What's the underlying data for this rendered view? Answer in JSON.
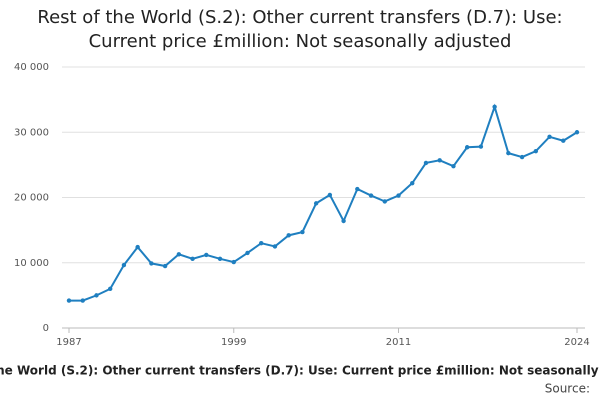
{
  "chart_data": {
    "type": "line",
    "title": "Rest of the World (S.2): Other current transfers (D.7): Use: Current price £million: Not seasonally adjusted",
    "source": "Source:",
    "x": [
      1987,
      1988,
      1989,
      1990,
      1991,
      1992,
      1993,
      1994,
      1995,
      1996,
      1997,
      1998,
      1999,
      2000,
      2001,
      2002,
      2003,
      2004,
      2005,
      2006,
      2007,
      2008,
      2009,
      2010,
      2011,
      2012,
      2013,
      2014,
      2015,
      2016,
      2017,
      2018,
      2019,
      2020,
      2021,
      2022,
      2023,
      2024
    ],
    "values": [
      4200,
      4200,
      5000,
      6000,
      9650,
      12400,
      9900,
      9500,
      11300,
      10600,
      11200,
      10600,
      10100,
      11500,
      13000,
      12500,
      14200,
      14700,
      19100,
      20400,
      16400,
      21300,
      20300,
      19400,
      20300,
      22200,
      25300,
      25700,
      24800,
      27700,
      27800,
      33900,
      26800,
      26200,
      27100,
      29300,
      28700,
      30000
    ],
    "color": "#1f7fc0",
    "xlim": [
      1987,
      2024
    ],
    "xticks": [
      1987,
      1999,
      2011,
      2024
    ],
    "ylim": [
      0,
      40000
    ],
    "yticks": [
      0,
      {
        "value": 10000,
        "label": "10 000"
      },
      {
        "value": 20000,
        "label": "20 000"
      },
      {
        "value": 30000,
        "label": "30 000"
      },
      {
        "value": 40000,
        "label": "40 000"
      }
    ],
    "grid": true
  }
}
